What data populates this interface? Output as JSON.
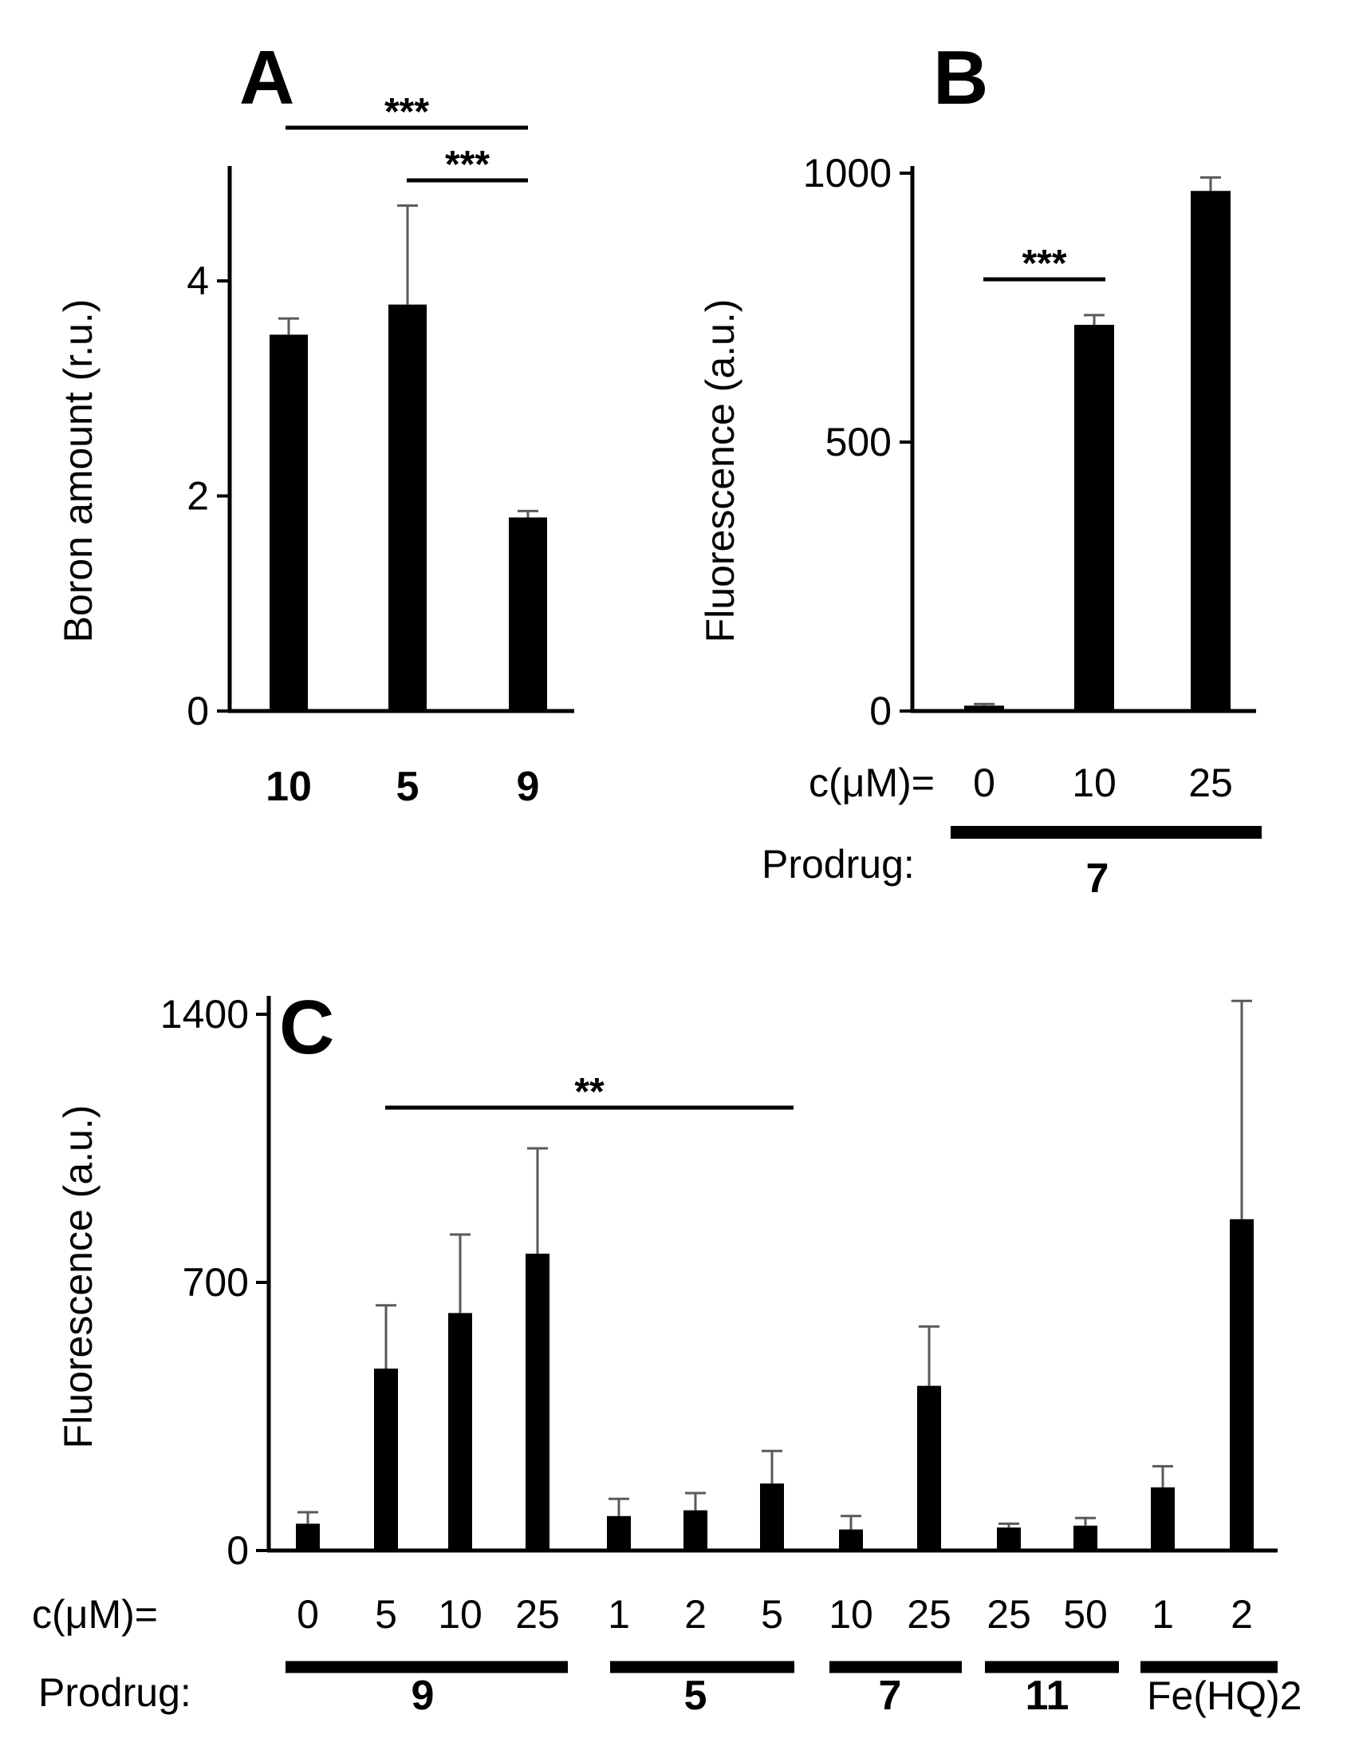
{
  "chart_data": [
    {
      "panel": "A",
      "type": "bar",
      "ylabel": "Boron amount (r.u.)",
      "categories": [
        "10",
        "5",
        "9"
      ],
      "values": [
        3.5,
        3.78,
        1.8
      ],
      "errors": [
        0.15,
        0.92,
        0.06
      ],
      "ylim": [
        0,
        5
      ],
      "yticks": [
        "0",
        "2",
        "4"
      ],
      "ytick_values": [
        0,
        2,
        4
      ],
      "significance": [
        {
          "from": 0,
          "to": 2,
          "label": "***"
        },
        {
          "from": 1,
          "to": 2,
          "label": "***"
        }
      ]
    },
    {
      "panel": "B",
      "type": "bar",
      "ylabel": "Fluorescence (a.u.)",
      "categories": [
        "0",
        "10",
        "25"
      ],
      "values": [
        10,
        718,
        967
      ],
      "errors": [
        3,
        18,
        25
      ],
      "ylim": [
        0,
        1000
      ],
      "yticks": [
        "0",
        "500",
        "1000"
      ],
      "ytick_values": [
        0,
        500,
        1000
      ],
      "conc_label": "c(μM)=",
      "prodrug_label": "Prodrug:",
      "groups": [
        {
          "label": "7",
          "start": 0,
          "end": 2
        }
      ],
      "significance": [
        {
          "from": 0,
          "to": 1,
          "label": "***"
        }
      ]
    },
    {
      "panel": "C",
      "type": "bar",
      "ylabel": "Fluorescence (a.u.)",
      "categories": [
        "0",
        "5",
        "10",
        "25",
        "1",
        "2",
        "5",
        "10",
        "25",
        "25",
        "50",
        "1",
        "2"
      ],
      "values": [
        70,
        475,
        620,
        775,
        90,
        105,
        175,
        55,
        430,
        60,
        65,
        165,
        865
      ],
      "errors": [
        30,
        165,
        205,
        275,
        45,
        45,
        85,
        35,
        155,
        10,
        20,
        55,
        570
      ],
      "ylim": [
        0,
        1400
      ],
      "yticks": [
        "0",
        "700",
        "1400"
      ],
      "ytick_values": [
        0,
        700,
        1400
      ],
      "conc_label": "c(μM)=",
      "prodrug_label": "Prodrug:",
      "groups": [
        {
          "label": "9",
          "start": 0,
          "end": 3
        },
        {
          "label": "5",
          "start": 4,
          "end": 6
        },
        {
          "label": "7",
          "start": 7,
          "end": 8
        },
        {
          "label": "11",
          "start": 9,
          "end": 10
        },
        {
          "label": "Fe(HQ)2",
          "start": 11,
          "end": 12
        }
      ],
      "significance": [
        {
          "from": 1,
          "to": 7,
          "label": "**"
        }
      ]
    }
  ]
}
